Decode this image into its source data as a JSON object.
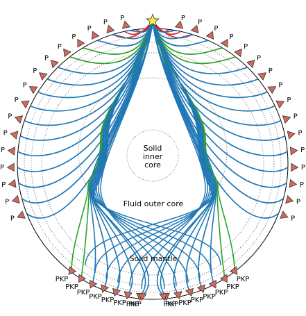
{
  "regions": {
    "inner_core": [
      "Solid",
      "inner",
      "core"
    ],
    "outer_core": "Fluid outer core",
    "mantle": "Solid mantle"
  },
  "source_icon": "star-icon",
  "station_icon": "triangle-icon",
  "phases": {
    "p": "P",
    "pkp": "PKP"
  },
  "colors": {
    "p_ray": "#1f77b4",
    "pkp_ray_blue": "#1f77b4",
    "pkp_ray_green": "#2ca02c",
    "shallow_ray": "#d62728",
    "station_fill": "#d5685b",
    "source_fill": "#ffec3d"
  },
  "stations": {
    "p_left_count": 16,
    "p_right_count": 16,
    "pkp_left_count": 8,
    "pkp_right_count": 8
  }
}
